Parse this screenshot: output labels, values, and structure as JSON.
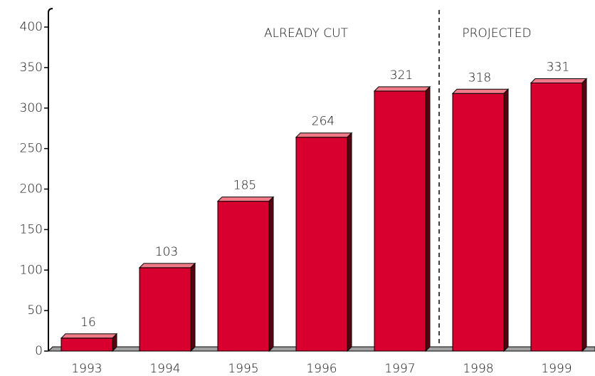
{
  "chart_data": {
    "type": "bar",
    "categories": [
      "1993",
      "1994",
      "1995",
      "1996",
      "1997",
      "1998",
      "1999"
    ],
    "values": [
      16,
      103,
      185,
      264,
      321,
      318,
      331
    ],
    "color": "#d8002e",
    "ylim": [
      0,
      400
    ],
    "yticks": [
      0,
      50,
      100,
      150,
      200,
      250,
      300,
      350,
      400
    ],
    "annotations": [
      "ALREADY CUT",
      "PROJECTED"
    ]
  }
}
